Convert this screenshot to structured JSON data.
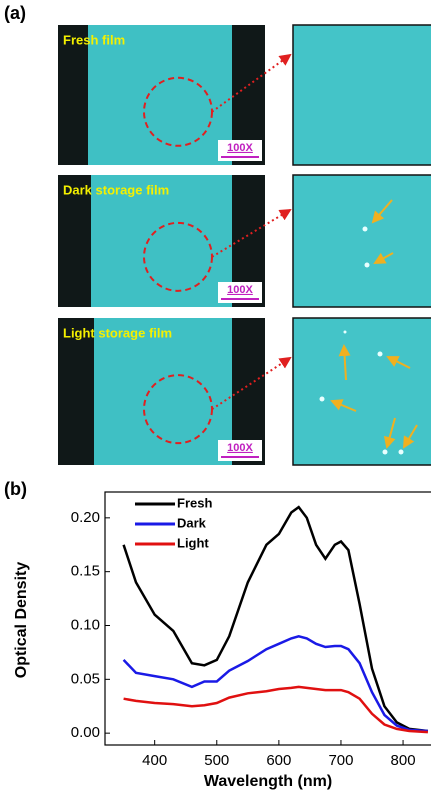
{
  "panel_labels": [
    "(a)",
    "(b)"
  ],
  "images": [
    {
      "label": "Fresh film",
      "scale": "100X"
    },
    {
      "label": "Dark storage film",
      "scale": "100X"
    },
    {
      "label": "Light storage film",
      "scale": "100X"
    }
  ],
  "chart_data": {
    "type": "line",
    "xlabel": "Wavelength (nm)",
    "ylabel": "Optical Density",
    "x": [
      350,
      370,
      400,
      430,
      460,
      480,
      500,
      520,
      550,
      580,
      600,
      620,
      632,
      645,
      660,
      675,
      690,
      700,
      712,
      730,
      750,
      770,
      790,
      810,
      840
    ],
    "series": [
      {
        "name": "Fresh",
        "color": "#000000",
        "values": [
          0.175,
          0.14,
          0.11,
          0.095,
          0.065,
          0.063,
          0.068,
          0.09,
          0.14,
          0.175,
          0.185,
          0.205,
          0.21,
          0.2,
          0.175,
          0.162,
          0.175,
          0.178,
          0.17,
          0.12,
          0.06,
          0.025,
          0.01,
          0.004,
          0.002
        ]
      },
      {
        "name": "Dark",
        "color": "#1a1ae6",
        "values": [
          0.068,
          0.056,
          0.053,
          0.05,
          0.043,
          0.048,
          0.048,
          0.058,
          0.067,
          0.078,
          0.083,
          0.088,
          0.09,
          0.088,
          0.083,
          0.08,
          0.081,
          0.081,
          0.078,
          0.065,
          0.038,
          0.017,
          0.007,
          0.003,
          0.002
        ]
      },
      {
        "name": "Light",
        "color": "#e01010",
        "values": [
          0.032,
          0.03,
          0.028,
          0.027,
          0.025,
          0.026,
          0.028,
          0.033,
          0.037,
          0.039,
          0.041,
          0.042,
          0.043,
          0.042,
          0.041,
          0.04,
          0.04,
          0.04,
          0.038,
          0.032,
          0.018,
          0.008,
          0.004,
          0.002,
          0.001
        ]
      }
    ],
    "xlim": [
      320,
      845
    ],
    "ylim": [
      -0.011,
      0.224
    ],
    "xticks": [
      400,
      500,
      600,
      700,
      800
    ],
    "yticks": [
      {
        "value": 0,
        "label": "0.00"
      },
      {
        "value": 0.05,
        "label": "0.05"
      },
      {
        "value": 0.1,
        "label": "0.10"
      },
      {
        "value": 0.15,
        "label": "0.15"
      },
      {
        "value": 0.2,
        "label": "0.20"
      }
    ],
    "legend": "upper left"
  }
}
